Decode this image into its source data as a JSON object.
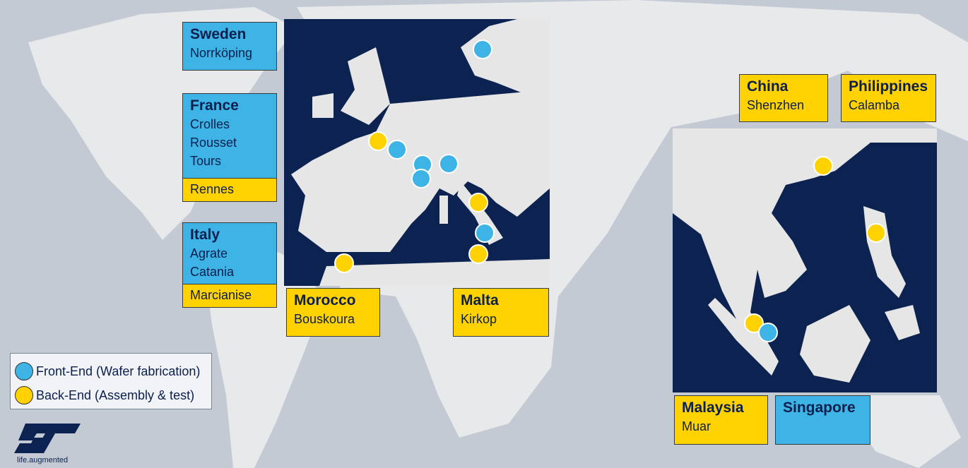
{
  "sites": [
    {
      "country": "Sweden",
      "front_end": [
        "Norrköping"
      ]
    },
    {
      "country": "France",
      "front_end": [
        "Crolles",
        "Rousset",
        "Tours"
      ],
      "back_end": [
        "Rennes"
      ]
    },
    {
      "country": "Italy",
      "front_end": [
        "Agrate",
        "Catania"
      ],
      "back_end": [
        "Marcianise"
      ]
    },
    {
      "country": "Morocco",
      "back_end": [
        "Bouskoura"
      ]
    },
    {
      "country": "Malta",
      "back_end": [
        "Kirkop"
      ]
    },
    {
      "country": "China",
      "back_end": [
        "Shenzhen"
      ]
    },
    {
      "country": "Philippines",
      "back_end": [
        "Calamba"
      ]
    },
    {
      "country": "Malaysia",
      "back_end": [
        "Muar"
      ]
    },
    {
      "country": "Singapore"
    }
  ],
  "legend": [
    "Front-End (Wafer fabrication)",
    "Back-End (Assembly & test)"
  ],
  "logo": {
    "tagline": "life.augmented"
  }
}
